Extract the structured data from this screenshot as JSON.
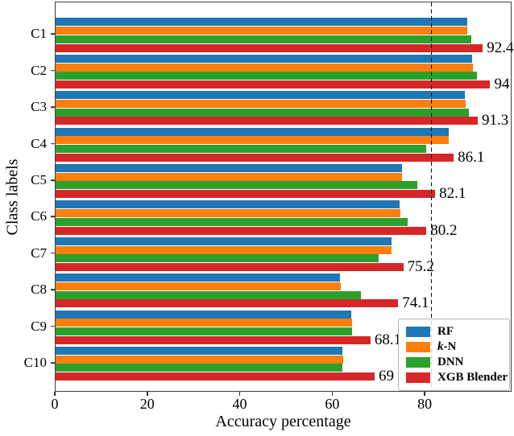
{
  "chart_data": {
    "type": "bar",
    "orientation": "horizontal",
    "title": "",
    "xlabel": "Accuracy percentage",
    "ylabel": "Class labels",
    "categories": [
      "C1",
      "C2",
      "C3",
      "C4",
      "C5",
      "C6",
      "C7",
      "C8",
      "C9",
      "C10"
    ],
    "series": [
      {
        "name": "RF",
        "color": "#1f77b4",
        "values": [
          89.0,
          90.1,
          88.5,
          85.0,
          74.9,
          74.4,
          72.6,
          61.5,
          63.9,
          62.0
        ]
      },
      {
        "name": "k-N",
        "color": "#ff7f0e",
        "values": [
          89.0,
          90.2,
          88.7,
          85.0,
          74.9,
          74.6,
          72.6,
          61.7,
          64.1,
          62.2
        ],
        "italic_first": true
      },
      {
        "name": "DNN",
        "color": "#2ca02c",
        "values": [
          89.9,
          91.1,
          89.4,
          80.1,
          78.2,
          76.1,
          69.9,
          66.0,
          64.1,
          62.0
        ]
      },
      {
        "name": "XGB Blender",
        "color": "#d62728",
        "values": [
          92.4,
          94.0,
          91.3,
          86.1,
          82.1,
          80.2,
          75.2,
          74.1,
          68.1,
          69.0
        ],
        "value_labels": [
          "92.4",
          "94",
          "91.3",
          "86.1",
          "82.1",
          "80.2",
          "75.2",
          "74.1",
          "68.1",
          "69"
        ]
      }
    ],
    "x_ticks": [
      {
        "value": 0,
        "label": "0"
      },
      {
        "value": 20,
        "label": "20"
      },
      {
        "value": 40,
        "label": "40"
      },
      {
        "value": 60,
        "label": "60"
      },
      {
        "value": 80,
        "label": "80"
      }
    ],
    "xlim": [
      0,
      98.8
    ],
    "reference_line": {
      "x": 81.3,
      "style": "dashed",
      "color": "#0a0a0a"
    },
    "legend_position": "lower right",
    "grid": false
  },
  "legend": {
    "items": [
      {
        "label": "RF",
        "color": "#1f77b4"
      },
      {
        "label": "k-N",
        "color": "#ff7f0e",
        "italic_first": true
      },
      {
        "label": "DNN",
        "color": "#2ca02c"
      },
      {
        "label": "XGB Blender",
        "color": "#d62728"
      }
    ]
  }
}
